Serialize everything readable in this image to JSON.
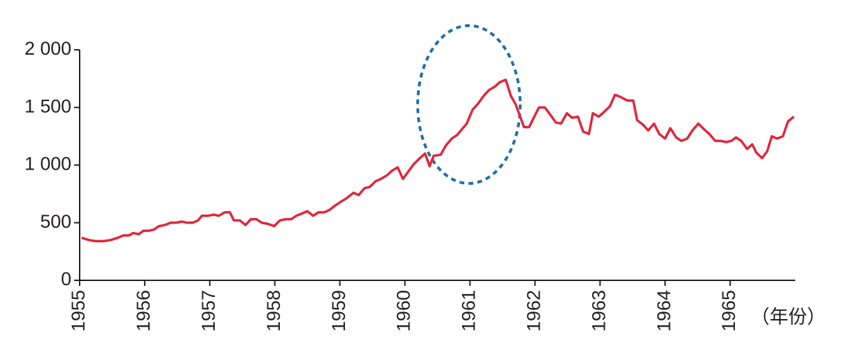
{
  "chart_data": {
    "type": "line",
    "x_label": "（年份）",
    "color": "#e1263a",
    "x": [
      1955.03,
      1955.14,
      1955.24,
      1955.37,
      1955.48,
      1955.59,
      1955.67,
      1955.76,
      1955.82,
      1955.91,
      1955.98,
      1956.06,
      1956.14,
      1956.22,
      1956.31,
      1956.4,
      1956.48,
      1956.57,
      1956.65,
      1956.74,
      1956.82,
      1956.88,
      1956.97,
      1957.06,
      1957.14,
      1957.23,
      1957.31,
      1957.37,
      1957.46,
      1957.55,
      1957.63,
      1957.72,
      1957.8,
      1957.89,
      1957.99,
      1958.08,
      1958.16,
      1958.25,
      1958.33,
      1958.42,
      1958.5,
      1958.59,
      1958.67,
      1958.76,
      1958.84,
      1958.93,
      1959.01,
      1959.1,
      1959.21,
      1959.29,
      1959.38,
      1959.46,
      1959.55,
      1959.63,
      1959.72,
      1959.8,
      1959.89,
      1959.97,
      1960.06,
      1960.14,
      1960.23,
      1960.31,
      1960.38,
      1960.44,
      1960.55,
      1960.63,
      1960.72,
      1960.8,
      1960.89,
      1960.95,
      1961.04,
      1961.12,
      1961.21,
      1961.29,
      1961.38,
      1961.46,
      1961.55,
      1961.63,
      1961.7,
      1961.76,
      1961.83,
      1961.91,
      1961.98,
      1962.06,
      1962.15,
      1962.23,
      1962.32,
      1962.4,
      1962.49,
      1962.57,
      1962.66,
      1962.74,
      1962.83,
      1962.89,
      1962.98,
      1963.06,
      1963.15,
      1963.23,
      1963.32,
      1963.42,
      1963.51,
      1963.57,
      1963.66,
      1963.74,
      1963.83,
      1963.91,
      1964.0,
      1964.08,
      1964.17,
      1964.25,
      1964.34,
      1964.42,
      1964.51,
      1964.6,
      1964.68,
      1964.77,
      1964.85,
      1964.94,
      1965.02,
      1965.09,
      1965.17,
      1965.26,
      1965.34,
      1965.4,
      1965.49,
      1965.57,
      1965.64,
      1965.72,
      1965.81,
      1965.89,
      1965.98
    ],
    "values": [
      370,
      350,
      340,
      340,
      350,
      370,
      390,
      390,
      410,
      400,
      430,
      430,
      440,
      470,
      480,
      500,
      500,
      510,
      500,
      500,
      520,
      560,
      560,
      570,
      560,
      590,
      590,
      520,
      520,
      480,
      530,
      530,
      500,
      490,
      470,
      520,
      530,
      530,
      560,
      580,
      600,
      560,
      590,
      590,
      610,
      650,
      680,
      710,
      760,
      740,
      800,
      810,
      860,
      880,
      910,
      950,
      980,
      880,
      950,
      1010,
      1060,
      1100,
      990,
      1080,
      1090,
      1170,
      1230,
      1260,
      1320,
      1360,
      1480,
      1530,
      1600,
      1650,
      1680,
      1720,
      1740,
      1600,
      1530,
      1440,
      1330,
      1330,
      1410,
      1500,
      1500,
      1440,
      1370,
      1360,
      1450,
      1410,
      1420,
      1290,
      1270,
      1450,
      1420,
      1460,
      1510,
      1610,
      1590,
      1560,
      1560,
      1390,
      1350,
      1300,
      1360,
      1270,
      1230,
      1320,
      1240,
      1210,
      1230,
      1300,
      1360,
      1310,
      1270,
      1210,
      1210,
      1200,
      1210,
      1240,
      1210,
      1140,
      1180,
      1110,
      1060,
      1120,
      1250,
      1230,
      1250,
      1380,
      1420
    ],
    "xlim": [
      1955,
      1966
    ],
    "xticks": [
      1955,
      1956,
      1957,
      1958,
      1959,
      1960,
      1961,
      1962,
      1963,
      1964,
      1965
    ],
    "ylim": [
      0,
      2000
    ],
    "yticks": [
      {
        "value": 0,
        "label": "0"
      },
      {
        "value": 500,
        "label": "500"
      },
      {
        "value": 1000,
        "label": "1 000"
      },
      {
        "value": 1500,
        "label": "1 500"
      },
      {
        "value": 2000,
        "label": "2 000"
      }
    ]
  }
}
